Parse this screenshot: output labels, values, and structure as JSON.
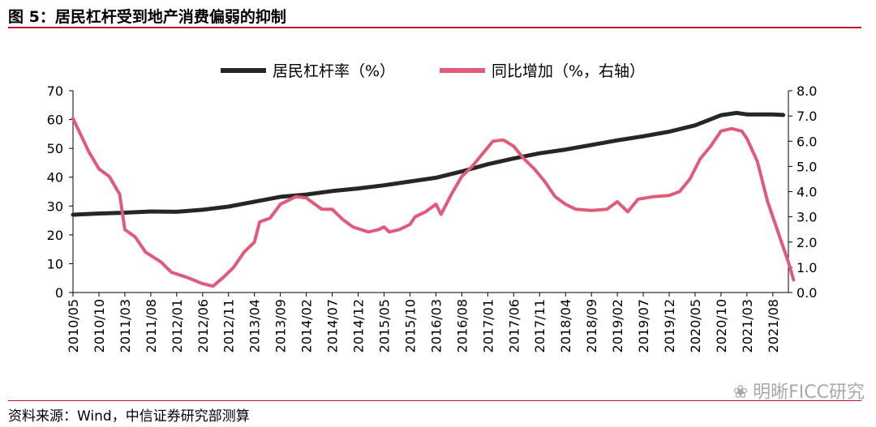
{
  "header": {
    "title": "图 5：居民杠杆受到地产消费偏弱的抑制"
  },
  "footer": {
    "source": "资料来源：Wind，中信证券研究部测算",
    "watermark": "明晰FICC研究"
  },
  "colors": {
    "rule": "#c8102e",
    "series1": "#262626",
    "series2": "#e15a7a"
  },
  "chart_data": {
    "type": "line",
    "legend_position": "top",
    "grid": false,
    "left_axis": {
      "min": 0,
      "max": 70,
      "ticks": [
        "0",
        "10",
        "20",
        "30",
        "40",
        "50",
        "60",
        "70"
      ]
    },
    "right_axis": {
      "min": 0,
      "max": 8,
      "ticks": [
        "0.0",
        "1.0",
        "2.0",
        "3.0",
        "4.0",
        "5.0",
        "6.0",
        "7.0",
        "8.0"
      ]
    },
    "x_tick_labels": [
      "2010/05",
      "2010/10",
      "2011/03",
      "2011/08",
      "2012/01",
      "2012/06",
      "2012/11",
      "2013/04",
      "2013/09",
      "2014/02",
      "2014/07",
      "2014/12",
      "2015/05",
      "2015/10",
      "2016/03",
      "2016/08",
      "2017/01",
      "2017/06",
      "2017/11",
      "2018/04",
      "2018/09",
      "2019/02",
      "2019/07",
      "2019/12",
      "2020/05",
      "2020/10",
      "2021/03",
      "2021/08"
    ],
    "x_start": "2010/05",
    "series": [
      {
        "name": "居民杠杆率（%）",
        "axis": "left",
        "points": [
          [
            "2010/05",
            27.0
          ],
          [
            "2010/10",
            27.4
          ],
          [
            "2011/03",
            27.7
          ],
          [
            "2011/08",
            28.1
          ],
          [
            "2012/01",
            28.0
          ],
          [
            "2012/06",
            28.7
          ],
          [
            "2012/11",
            29.8
          ],
          [
            "2013/04",
            31.5
          ],
          [
            "2013/09",
            33.2
          ],
          [
            "2014/02",
            34.0
          ],
          [
            "2014/07",
            35.2
          ],
          [
            "2014/12",
            36.1
          ],
          [
            "2015/05",
            37.2
          ],
          [
            "2015/10",
            38.5
          ],
          [
            "2016/03",
            39.8
          ],
          [
            "2016/08",
            42.0
          ],
          [
            "2017/01",
            44.5
          ],
          [
            "2017/06",
            46.5
          ],
          [
            "2017/11",
            48.3
          ],
          [
            "2018/04",
            49.6
          ],
          [
            "2018/09",
            51.2
          ],
          [
            "2019/02",
            52.8
          ],
          [
            "2019/07",
            54.2
          ],
          [
            "2019/12",
            55.8
          ],
          [
            "2020/05",
            58.0
          ],
          [
            "2020/10",
            61.5
          ],
          [
            "2021/01",
            62.3
          ],
          [
            "2021/03",
            61.8
          ],
          [
            "2021/08",
            61.8
          ],
          [
            "2021/10",
            61.6
          ]
        ]
      },
      {
        "name": "同比增加（%，右轴）",
        "axis": "right",
        "points": [
          [
            "2010/05",
            6.9
          ],
          [
            "2010/08",
            5.6
          ],
          [
            "2010/10",
            4.9
          ],
          [
            "2010/12",
            4.6
          ],
          [
            "2011/02",
            3.9
          ],
          [
            "2011/03",
            2.5
          ],
          [
            "2011/05",
            2.2
          ],
          [
            "2011/07",
            1.6
          ],
          [
            "2011/10",
            1.2
          ],
          [
            "2011/12",
            0.8
          ],
          [
            "2012/03",
            0.6
          ],
          [
            "2012/06",
            0.35
          ],
          [
            "2012/08",
            0.25
          ],
          [
            "2012/10",
            0.6
          ],
          [
            "2012/12",
            1.0
          ],
          [
            "2013/02",
            1.6
          ],
          [
            "2013/04",
            2.0
          ],
          [
            "2013/05",
            2.8
          ],
          [
            "2013/07",
            2.95
          ],
          [
            "2013/09",
            3.5
          ],
          [
            "2013/12",
            3.8
          ],
          [
            "2014/02",
            3.75
          ],
          [
            "2014/05",
            3.3
          ],
          [
            "2014/07",
            3.3
          ],
          [
            "2014/09",
            2.9
          ],
          [
            "2014/11",
            2.6
          ],
          [
            "2015/02",
            2.4
          ],
          [
            "2015/04",
            2.5
          ],
          [
            "2015/05",
            2.6
          ],
          [
            "2015/06",
            2.4
          ],
          [
            "2015/08",
            2.5
          ],
          [
            "2015/10",
            2.7
          ],
          [
            "2015/11",
            3.0
          ],
          [
            "2016/01",
            3.2
          ],
          [
            "2016/03",
            3.5
          ],
          [
            "2016/04",
            3.1
          ],
          [
            "2016/06",
            3.9
          ],
          [
            "2016/08",
            4.6
          ],
          [
            "2016/10",
            5.0
          ],
          [
            "2016/12",
            5.5
          ],
          [
            "2017/02",
            6.0
          ],
          [
            "2017/04",
            6.05
          ],
          [
            "2017/06",
            5.8
          ],
          [
            "2017/08",
            5.3
          ],
          [
            "2017/10",
            4.9
          ],
          [
            "2017/12",
            4.4
          ],
          [
            "2018/02",
            3.8
          ],
          [
            "2018/04",
            3.5
          ],
          [
            "2018/06",
            3.3
          ],
          [
            "2018/09",
            3.25
          ],
          [
            "2018/12",
            3.3
          ],
          [
            "2019/02",
            3.6
          ],
          [
            "2019/04",
            3.2
          ],
          [
            "2019/06",
            3.7
          ],
          [
            "2019/09",
            3.8
          ],
          [
            "2019/12",
            3.85
          ],
          [
            "2020/02",
            4.0
          ],
          [
            "2020/04",
            4.5
          ],
          [
            "2020/06",
            5.3
          ],
          [
            "2020/08",
            5.8
          ],
          [
            "2020/10",
            6.4
          ],
          [
            "2020/12",
            6.5
          ],
          [
            "2021/02",
            6.4
          ],
          [
            "2021/03",
            6.1
          ],
          [
            "2021/05",
            5.2
          ],
          [
            "2021/07",
            3.6
          ],
          [
            "2021/09",
            2.4
          ],
          [
            "2021/11",
            1.2
          ],
          [
            "2021/12",
            0.5
          ]
        ]
      }
    ]
  }
}
